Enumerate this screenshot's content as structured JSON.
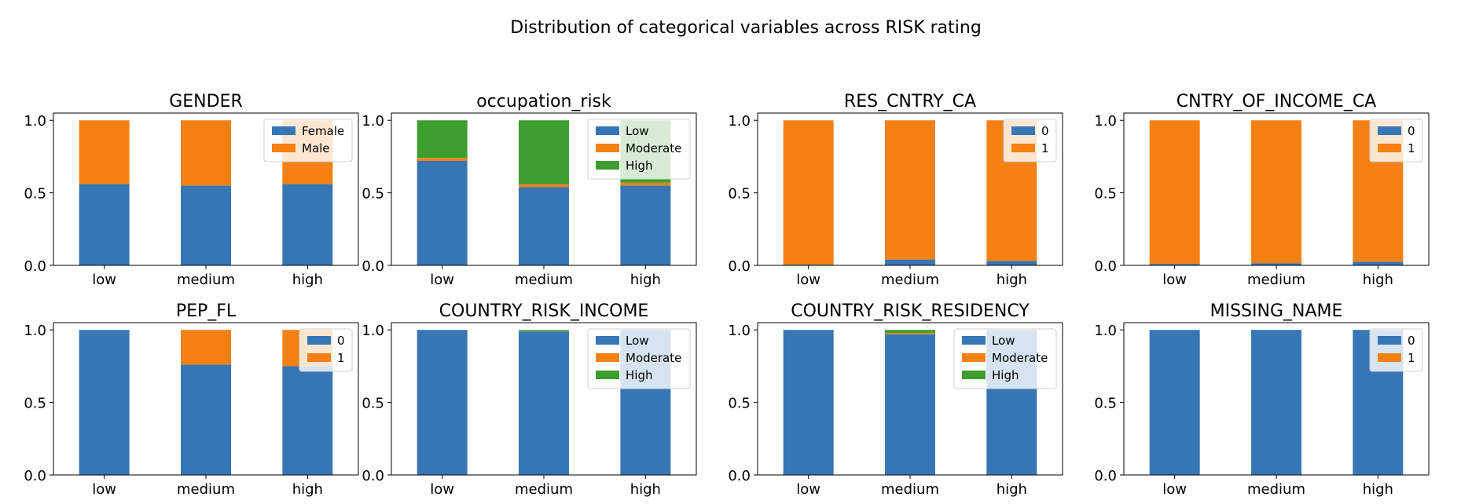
{
  "figure": {
    "title": "Distribution of categorical variables across RISK rating"
  },
  "colors": {
    "blue": "#3776b4",
    "orange": "#f58114",
    "green": "#3d9e2f"
  },
  "chart_data": [
    {
      "type": "bar",
      "stacked": true,
      "title": "GENDER",
      "categories": [
        "low",
        "medium",
        "high"
      ],
      "yticks": [
        "0.0",
        "0.5",
        "1.0"
      ],
      "ylim": [
        0,
        1.05
      ],
      "legend": "top-right",
      "series": [
        {
          "name": "Female",
          "values": [
            0.56,
            0.55,
            0.56
          ]
        },
        {
          "name": "Male",
          "values": [
            0.44,
            0.45,
            0.44
          ]
        }
      ]
    },
    {
      "type": "bar",
      "stacked": true,
      "title": "occupation_risk",
      "categories": [
        "low",
        "medium",
        "high"
      ],
      "yticks": [
        "0.0",
        "0.5",
        "1.0"
      ],
      "ylim": [
        0,
        1.05
      ],
      "legend": "top-right",
      "series": [
        {
          "name": "Low",
          "values": [
            0.72,
            0.54,
            0.55
          ]
        },
        {
          "name": "Moderate",
          "values": [
            0.02,
            0.02,
            0.02
          ]
        },
        {
          "name": "High",
          "values": [
            0.26,
            0.44,
            0.43
          ]
        }
      ]
    },
    {
      "type": "bar",
      "stacked": true,
      "title": "RES_CNTRY_CA",
      "categories": [
        "low",
        "medium",
        "high"
      ],
      "yticks": [
        "0.0",
        "0.5",
        "1.0"
      ],
      "ylim": [
        0,
        1.05
      ],
      "legend": "top-right",
      "series": [
        {
          "name": "0",
          "values": [
            0.005,
            0.04,
            0.03
          ]
        },
        {
          "name": "1",
          "values": [
            0.995,
            0.96,
            0.97
          ]
        }
      ]
    },
    {
      "type": "bar",
      "stacked": true,
      "title": "CNTRY_OF_INCOME_CA",
      "categories": [
        "low",
        "medium",
        "high"
      ],
      "yticks": [
        "0.0",
        "0.5",
        "1.0"
      ],
      "ylim": [
        0,
        1.05
      ],
      "legend": "top-right",
      "series": [
        {
          "name": "0",
          "values": [
            0.01,
            0.015,
            0.025
          ]
        },
        {
          "name": "1",
          "values": [
            0.99,
            0.985,
            0.975
          ]
        }
      ]
    },
    {
      "type": "bar",
      "stacked": true,
      "title": "PEP_FL",
      "categories": [
        "low",
        "medium",
        "high"
      ],
      "yticks": [
        "0.0",
        "0.5",
        "1.0"
      ],
      "ylim": [
        0,
        1.05
      ],
      "legend": "top-right",
      "series": [
        {
          "name": "0",
          "values": [
            1.0,
            0.76,
            0.75
          ]
        },
        {
          "name": "1",
          "values": [
            0.0,
            0.24,
            0.25
          ]
        }
      ]
    },
    {
      "type": "bar",
      "stacked": true,
      "title": "COUNTRY_RISK_INCOME",
      "categories": [
        "low",
        "medium",
        "high"
      ],
      "yticks": [
        "0.0",
        "0.5",
        "1.0"
      ],
      "ylim": [
        0,
        1.05
      ],
      "legend": "top-right",
      "series": [
        {
          "name": "Low",
          "values": [
            1.0,
            0.99,
            1.0
          ]
        },
        {
          "name": "Moderate",
          "values": [
            0.0,
            0.002,
            0.0
          ]
        },
        {
          "name": "High",
          "values": [
            0.0,
            0.008,
            0.0
          ]
        }
      ]
    },
    {
      "type": "bar",
      "stacked": true,
      "title": "COUNTRY_RISK_RESIDENCY",
      "categories": [
        "low",
        "medium",
        "high"
      ],
      "yticks": [
        "0.0",
        "0.5",
        "1.0"
      ],
      "ylim": [
        0,
        1.05
      ],
      "legend": "top-right",
      "series": [
        {
          "name": "Low",
          "values": [
            1.0,
            0.97,
            0.99
          ]
        },
        {
          "name": "Moderate",
          "values": [
            0.0,
            0.01,
            0.0
          ]
        },
        {
          "name": "High",
          "values": [
            0.0,
            0.02,
            0.01
          ]
        }
      ]
    },
    {
      "type": "bar",
      "stacked": true,
      "title": "MISSING_NAME",
      "categories": [
        "low",
        "medium",
        "high"
      ],
      "yticks": [
        "0.0",
        "0.5",
        "1.0"
      ],
      "ylim": [
        0,
        1.05
      ],
      "legend": "top-right",
      "series": [
        {
          "name": "0",
          "values": [
            1.0,
            1.0,
            1.0
          ]
        },
        {
          "name": "1",
          "values": [
            0.0,
            0.0,
            0.0
          ]
        }
      ]
    }
  ]
}
